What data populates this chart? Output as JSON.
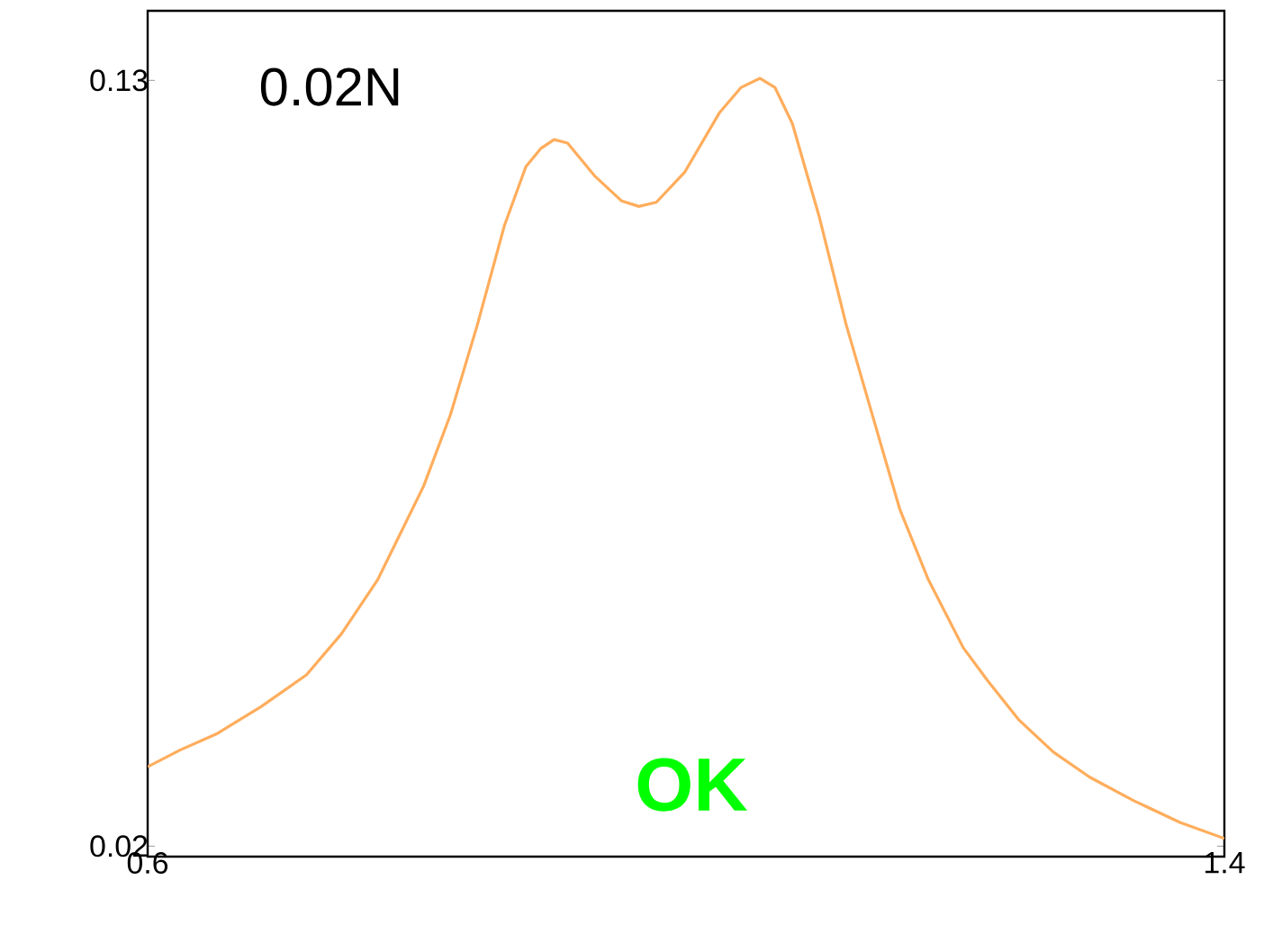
{
  "chart_data": {
    "type": "line",
    "x": [
      0.6,
      0.624,
      0.651,
      0.684,
      0.718,
      0.744,
      0.771,
      0.805,
      0.825,
      0.845,
      0.865,
      0.881,
      0.892,
      0.902,
      0.912,
      0.932,
      0.952,
      0.965,
      0.978,
      0.999,
      1.025,
      1.041,
      1.055,
      1.066,
      1.079,
      1.099,
      1.119,
      1.146,
      1.159,
      1.18,
      1.206,
      1.224,
      1.247,
      1.273,
      1.3,
      1.333,
      1.367,
      1.4
    ],
    "series": [
      {
        "color": "#ffad5c",
        "values": [
          0.0314,
          0.0338,
          0.0361,
          0.04,
          0.0446,
          0.0505,
          0.0583,
          0.0717,
          0.082,
          0.0949,
          0.1091,
          0.1176,
          0.1202,
          0.1215,
          0.121,
          0.1163,
          0.1127,
          0.1119,
          0.1125,
          0.1168,
          0.1254,
          0.129,
          0.1303,
          0.129,
          0.1238,
          0.1104,
          0.0949,
          0.0769,
          0.0683,
          0.0583,
          0.0485,
          0.0438,
          0.0382,
          0.0335,
          0.0299,
          0.0265,
          0.0234,
          0.0211
        ]
      }
    ],
    "xlim": [
      0.6,
      1.4
    ],
    "ylim": [
      0.0185,
      0.14
    ],
    "xticks": [
      0.6,
      1.4
    ],
    "yticks": [
      0.02,
      0.13
    ],
    "annotations": [
      "0.02N",
      "OK"
    ],
    "grid": false,
    "marker": "none",
    "line_style": "solid"
  }
}
